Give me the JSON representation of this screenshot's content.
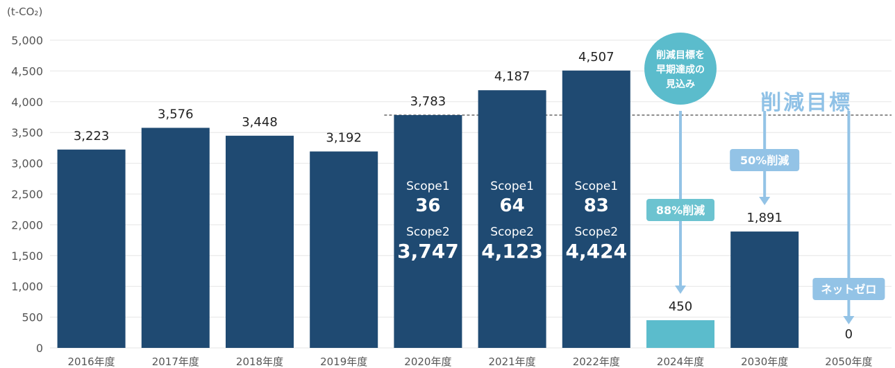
{
  "chart_data": {
    "type": "bar",
    "unit_label": "(t-CO₂)",
    "ylim": [
      0,
      5000
    ],
    "yticks": [
      "0",
      "500",
      "1,000",
      "1,500",
      "2,000",
      "2,500",
      "3,000",
      "3,500",
      "4,000",
      "4,500",
      "5,000"
    ],
    "categories": [
      "2016年度",
      "2017年度",
      "2018年度",
      "2019年度",
      "2020年度",
      "2021年度",
      "2022年度",
      "2024年度",
      "2030年度",
      "2050年度"
    ],
    "values": [
      3223,
      3576,
      3448,
      3192,
      3783,
      4187,
      4507,
      450,
      1891,
      0
    ],
    "value_labels": [
      "3,223",
      "3,576",
      "3,448",
      "3,192",
      "3,783",
      "4,187",
      "4,507",
      "450",
      "1,891",
      "0"
    ],
    "bar_colors": [
      "#1f4a72",
      "#1f4a72",
      "#1f4a72",
      "#1f4a72",
      "#1f4a72",
      "#1f4a72",
      "#1f4a72",
      "#5bbccc",
      "#1f4a72",
      "#1f4a72"
    ],
    "scope_breakdown": [
      {
        "category": "2020年度",
        "scope1_label": "Scope1",
        "scope1_value": "36",
        "scope2_label": "Scope2",
        "scope2_value": "3,747"
      },
      {
        "category": "2021年度",
        "scope1_label": "Scope1",
        "scope1_value": "64",
        "scope2_label": "Scope2",
        "scope2_value": "4,123"
      },
      {
        "category": "2022年度",
        "scope1_label": "Scope1",
        "scope1_value": "83",
        "scope2_label": "Scope2",
        "scope2_value": "4,424"
      }
    ],
    "reference_line": {
      "value": 3783,
      "label": "削減目標",
      "style": "dashed"
    },
    "annotations": {
      "early_achievement": "削減目標を\n早期達成の\n見込み",
      "reduction_2024": "88%削減",
      "reduction_2030": "50%削減",
      "net_zero": "ネットゼロ"
    },
    "grid": true
  },
  "colors": {
    "bar": "#1f4a72",
    "bar_2024": "#5bbccc",
    "teal_circle": "#5bbccc",
    "light_blue": "#93c3e6",
    "target_text": "#8fc1e6",
    "grid": "#e6e6e6",
    "text": "#222222",
    "axis_text": "#555555"
  }
}
